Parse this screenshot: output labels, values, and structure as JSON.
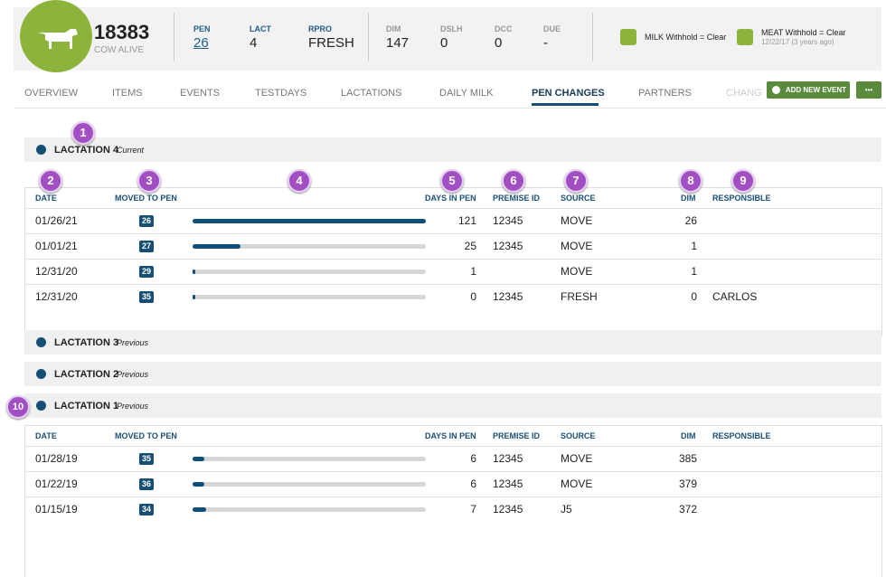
{
  "header": {
    "cow_id": "18383",
    "status": "COW ALIVE",
    "stats": [
      {
        "label": "PEN",
        "value": 26
      },
      {
        "label": "LACT",
        "value": 4
      },
      {
        "label": "RPRO",
        "value": "FRESH"
      },
      {
        "label": "DIM",
        "value": 147
      },
      {
        "label": "DSLH",
        "value": 0
      },
      {
        "label": "DCC",
        "value": 0
      },
      {
        "label": "DUE",
        "value": "-"
      }
    ],
    "milk": "MILK Withhold = Clear",
    "meat": "MEAT Withhold = Clear",
    "meat_date": "12/22/17 (3 years ago)"
  },
  "tabs": [
    "OVERVIEW",
    "ITEMS",
    "EVENTS",
    "TESTDAYS",
    "LACTATIONS",
    "DAILY MILK",
    "PEN CHANGES",
    "PARTNERS",
    "CHANG"
  ],
  "active_tab": 6,
  "buttons": {
    "add_event": "ADD NEW EVENT",
    "more": "•••"
  },
  "callouts": [
    "1",
    "2",
    "3",
    "4",
    "5",
    "6",
    "7",
    "8",
    "9",
    "10"
  ],
  "columns": [
    "DATE",
    "MOVED TO PEN",
    "DAYS IN PEN",
    "PREMISE ID",
    "SOURCE",
    "DIM",
    "RESPONSIBLE"
  ],
  "lactations": [
    {
      "title": "LACTATION 4",
      "status": "Current",
      "expanded": true,
      "rows": [
        {
          "date": "01/26/21",
          "pen": 26,
          "days": 121,
          "premise": 12345,
          "source": "MOVE",
          "dim": 26,
          "responsible": null
        },
        {
          "date": "01/01/21",
          "pen": 27,
          "days": 25,
          "premise": 12345,
          "source": "MOVE",
          "dim": 1,
          "responsible": null
        },
        {
          "date": "12/31/20",
          "pen": 29,
          "days": 1,
          "premise": null,
          "source": "MOVE",
          "dim": 1,
          "responsible": null
        },
        {
          "date": "12/31/20",
          "pen": 35,
          "days": 0,
          "premise": 12345,
          "source": "FRESH",
          "dim": 0,
          "responsible": "CARLOS"
        }
      ]
    },
    {
      "title": "LACTATION 3",
      "status": "Previous",
      "expanded": false,
      "rows": []
    },
    {
      "title": "LACTATION 2",
      "status": "Previous",
      "expanded": false,
      "rows": []
    },
    {
      "title": "LACTATION 1",
      "status": "Previous",
      "expanded": true,
      "rows": [
        {
          "date": "01/28/19",
          "pen": 35,
          "days": 6,
          "premise": 12345,
          "source": "MOVE",
          "dim": 385,
          "responsible": null
        },
        {
          "date": "01/22/19",
          "pen": 36,
          "days": 6,
          "premise": 12345,
          "source": "MOVE",
          "dim": 379,
          "responsible": null
        },
        {
          "date": "01/15/19",
          "pen": 34,
          "days": 7,
          "premise": 12345,
          "source": "J5",
          "dim": 372,
          "responsible": null
        }
      ]
    }
  ]
}
